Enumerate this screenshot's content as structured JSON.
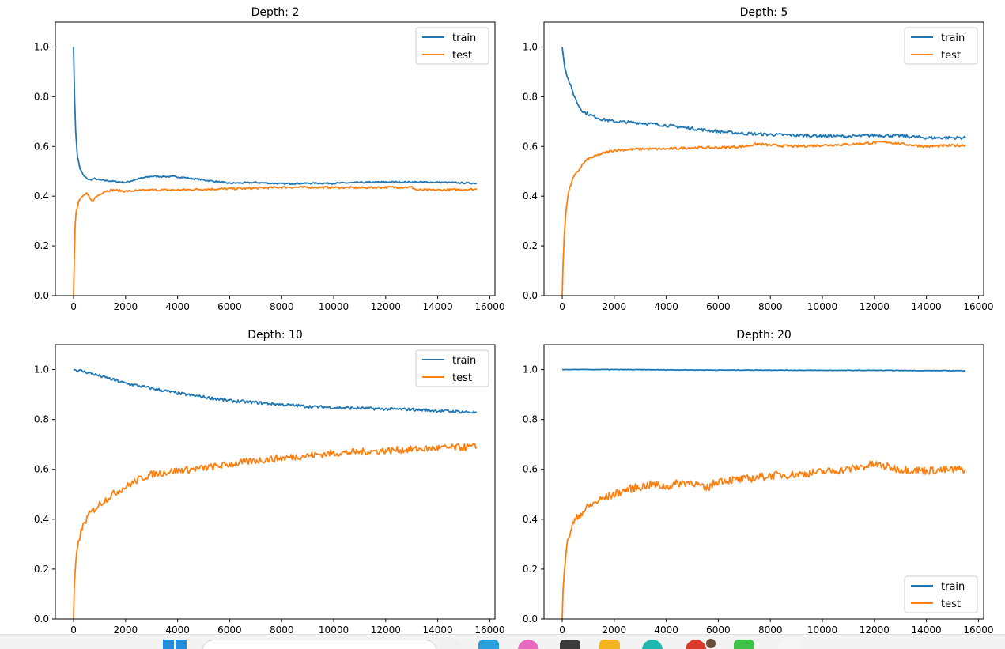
{
  "chart_data": [
    {
      "type": "line",
      "title": "Depth: 2",
      "xlim": [
        -700,
        16200
      ],
      "ylim": [
        0.0,
        1.1
      ],
      "xticks": [
        "0",
        "2000",
        "4000",
        "6000",
        "8000",
        "10000",
        "12000",
        "14000",
        "16000"
      ],
      "yticks": [
        "0.0",
        "0.2",
        "0.4",
        "0.6",
        "0.8",
        "1.0"
      ],
      "legend_position": "upper right",
      "series": [
        {
          "name": "train",
          "color": "#1f77b4",
          "x": [
            0,
            40,
            80,
            150,
            250,
            400,
            600,
            800,
            1000,
            1500,
            2000,
            2500,
            3000,
            4000,
            5000,
            6000,
            7000,
            8000,
            9000,
            10000,
            11000,
            12000,
            13000,
            14000,
            15500
          ],
          "y": [
            1.0,
            0.8,
            0.66,
            0.56,
            0.51,
            0.48,
            0.465,
            0.47,
            0.465,
            0.46,
            0.455,
            0.47,
            0.48,
            0.478,
            0.465,
            0.452,
            0.455,
            0.45,
            0.452,
            0.452,
            0.455,
            0.457,
            0.457,
            0.456,
            0.452
          ]
        },
        {
          "name": "test",
          "color": "#ff7f0e",
          "x": [
            0,
            30,
            60,
            100,
            200,
            350,
            500,
            700,
            900,
            1200,
            1500,
            2000,
            3000,
            4000,
            5000,
            6000,
            7000,
            8000,
            9000,
            10000,
            11000,
            12000,
            13000,
            13200,
            14000,
            15500
          ],
          "y": [
            0.0,
            0.15,
            0.28,
            0.34,
            0.38,
            0.4,
            0.41,
            0.38,
            0.4,
            0.42,
            0.425,
            0.42,
            0.425,
            0.425,
            0.428,
            0.43,
            0.432,
            0.436,
            0.436,
            0.435,
            0.434,
            0.436,
            0.436,
            0.425,
            0.425,
            0.428
          ]
        }
      ]
    },
    {
      "type": "line",
      "title": "Depth: 5",
      "xlim": [
        -700,
        16200
      ],
      "ylim": [
        0.0,
        1.1
      ],
      "xticks": [
        "0",
        "2000",
        "4000",
        "6000",
        "8000",
        "10000",
        "12000",
        "14000",
        "16000"
      ],
      "yticks": [
        "0.0",
        "0.2",
        "0.4",
        "0.6",
        "0.8",
        "1.0"
      ],
      "legend_position": "upper right",
      "series": [
        {
          "name": "train",
          "color": "#1f77b4",
          "x": [
            0,
            50,
            100,
            200,
            400,
            600,
            800,
            1000,
            1500,
            2000,
            2500,
            3000,
            4000,
            5000,
            6000,
            7000,
            8000,
            9000,
            10000,
            11000,
            12000,
            13000,
            14000,
            15500
          ],
          "y": [
            1.0,
            0.96,
            0.92,
            0.88,
            0.82,
            0.77,
            0.74,
            0.73,
            0.71,
            0.7,
            0.698,
            0.695,
            0.685,
            0.672,
            0.66,
            0.652,
            0.648,
            0.645,
            0.643,
            0.64,
            0.645,
            0.643,
            0.635,
            0.635
          ]
        },
        {
          "name": "test",
          "color": "#ff7f0e",
          "x": [
            0,
            30,
            80,
            150,
            250,
            400,
            600,
            800,
            1000,
            1500,
            2000,
            3000,
            4000,
            5000,
            6000,
            7000,
            7500,
            8000,
            9000,
            10000,
            11000,
            12000,
            12500,
            13000,
            14000,
            15500
          ],
          "y": [
            0.0,
            0.12,
            0.25,
            0.35,
            0.42,
            0.47,
            0.5,
            0.53,
            0.55,
            0.57,
            0.585,
            0.59,
            0.59,
            0.595,
            0.595,
            0.6,
            0.61,
            0.605,
            0.6,
            0.605,
            0.608,
            0.615,
            0.618,
            0.61,
            0.6,
            0.605
          ]
        }
      ]
    },
    {
      "type": "line",
      "title": "Depth: 10",
      "xlim": [
        -700,
        16200
      ],
      "ylim": [
        0.0,
        1.1
      ],
      "xticks": [
        "0",
        "2000",
        "4000",
        "6000",
        "8000",
        "10000",
        "12000",
        "14000",
        "16000"
      ],
      "yticks": [
        "0.0",
        "0.2",
        "0.4",
        "0.6",
        "0.8",
        "1.0"
      ],
      "legend_position": "upper right",
      "series": [
        {
          "name": "train",
          "color": "#1f77b4",
          "x": [
            0,
            500,
            1000,
            1500,
            2000,
            3000,
            4000,
            5000,
            6000,
            7000,
            8000,
            9000,
            10000,
            11000,
            12000,
            13000,
            14000,
            15500
          ],
          "y": [
            1.0,
            0.99,
            0.975,
            0.96,
            0.945,
            0.925,
            0.905,
            0.89,
            0.875,
            0.868,
            0.86,
            0.852,
            0.848,
            0.845,
            0.842,
            0.84,
            0.835,
            0.828
          ]
        },
        {
          "name": "test",
          "color": "#ff7f0e",
          "x": [
            0,
            30,
            80,
            150,
            250,
            400,
            600,
            800,
            1000,
            1500,
            2000,
            2500,
            3000,
            4000,
            5000,
            6000,
            7000,
            8000,
            9000,
            10000,
            11000,
            12000,
            13000,
            14000,
            15500
          ],
          "y": [
            0.0,
            0.12,
            0.22,
            0.28,
            0.34,
            0.38,
            0.42,
            0.44,
            0.46,
            0.5,
            0.53,
            0.56,
            0.58,
            0.595,
            0.605,
            0.62,
            0.635,
            0.645,
            0.655,
            0.665,
            0.67,
            0.675,
            0.68,
            0.685,
            0.69
          ]
        }
      ]
    },
    {
      "type": "line",
      "title": "Depth: 20",
      "xlim": [
        -700,
        16200
      ],
      "ylim": [
        0.0,
        1.1
      ],
      "xticks": [
        "0",
        "2000",
        "4000",
        "6000",
        "8000",
        "10000",
        "12000",
        "14000",
        "16000"
      ],
      "yticks": [
        "0.0",
        "0.2",
        "0.4",
        "0.6",
        "0.8",
        "1.0"
      ],
      "legend_position": "lower right",
      "series": [
        {
          "name": "train",
          "color": "#1f77b4",
          "x": [
            0,
            2000,
            4000,
            6000,
            8000,
            10000,
            12000,
            14000,
            15500
          ],
          "y": [
            1.0,
            1.0,
            0.999,
            0.998,
            0.998,
            0.997,
            0.997,
            0.996,
            0.996
          ]
        },
        {
          "name": "test",
          "color": "#ff7f0e",
          "x": [
            0,
            30,
            80,
            150,
            250,
            400,
            600,
            800,
            1000,
            1500,
            2000,
            2500,
            3000,
            3500,
            4000,
            4500,
            5000,
            5500,
            6000,
            7000,
            8000,
            9000,
            10000,
            11000,
            12000,
            12500,
            13000,
            14000,
            15500
          ],
          "y": [
            0.0,
            0.12,
            0.2,
            0.27,
            0.33,
            0.38,
            0.41,
            0.43,
            0.45,
            0.48,
            0.5,
            0.52,
            0.53,
            0.54,
            0.53,
            0.545,
            0.55,
            0.52,
            0.555,
            0.56,
            0.575,
            0.58,
            0.59,
            0.6,
            0.62,
            0.61,
            0.6,
            0.595,
            0.6
          ]
        }
      ]
    }
  ],
  "taskbar": {
    "start_color": "#1f8ee0",
    "apps": [
      {
        "icon": "file-explorer-icon",
        "color": "#f0f0f0"
      },
      {
        "icon": "store-icon",
        "color": "#2aa0e0"
      },
      {
        "icon": "paint-icon",
        "color": "#e86ac0"
      },
      {
        "icon": "terminal-icon",
        "color": "#3a3a3a"
      },
      {
        "icon": "folder-icon",
        "color": "#f2b51f"
      },
      {
        "icon": "edge-icon",
        "color": "#20b7b0"
      },
      {
        "icon": "chrome-icon",
        "color": "#d93a2b"
      },
      {
        "icon": "messaging-icon",
        "color": "#3fc14a"
      },
      {
        "icon": "app-icon",
        "color": "#f6f6f6"
      }
    ]
  }
}
